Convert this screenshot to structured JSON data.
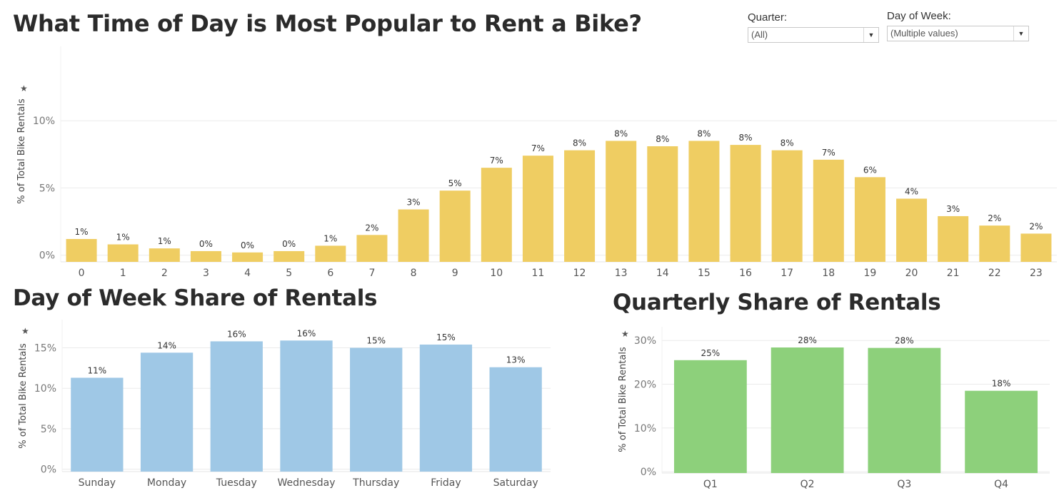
{
  "titles": {
    "main": "What Time of Day is Most Popular to Rent a Bike?",
    "day_of_week": "Day of Week Share of Rentals",
    "quarterly": "Quarterly Share of Rentals"
  },
  "filters": {
    "quarter": {
      "label": "Quarter:",
      "value": "(All)",
      "icon": "chevron-down-icon"
    },
    "day_of_week": {
      "label": "Day of Week:",
      "value": "(Multiple values)",
      "icon": "chevron-down-icon"
    }
  },
  "colors": {
    "hour_bars": "#efcd62",
    "dow_bars": "#9fc8e6",
    "quarter_bars": "#8dd07b"
  },
  "chart_data": [
    {
      "id": "hourly",
      "type": "bar",
      "ylabel": "% of Total Bike Rentals",
      "ylim": [
        -0.5,
        15
      ],
      "yticks": [
        {
          "v": 0,
          "label": "0%"
        },
        {
          "v": 5,
          "label": "5%"
        },
        {
          "v": 10,
          "label": "10%"
        }
      ],
      "grid": true,
      "categories": [
        "0",
        "1",
        "2",
        "3",
        "4",
        "5",
        "6",
        "7",
        "8",
        "9",
        "10",
        "11",
        "12",
        "13",
        "14",
        "15",
        "16",
        "17",
        "18",
        "19",
        "20",
        "21",
        "22",
        "23"
      ],
      "values": [
        1.2,
        0.8,
        0.5,
        0.3,
        0.2,
        0.3,
        0.7,
        1.5,
        3.4,
        4.8,
        6.5,
        7.4,
        7.8,
        8.5,
        8.1,
        8.5,
        8.2,
        7.8,
        7.1,
        5.8,
        4.2,
        2.9,
        2.2,
        1.6
      ],
      "labels": [
        "1%",
        "1%",
        "1%",
        "0%",
        "0%",
        "0%",
        "1%",
        "2%",
        "3%",
        "5%",
        "7%",
        "7%",
        "8%",
        "8%",
        "8%",
        "8%",
        "8%",
        "8%",
        "7%",
        "6%",
        "4%",
        "3%",
        "2%",
        "2%"
      ]
    },
    {
      "id": "day_of_week",
      "type": "bar",
      "ylabel": "% of Total Bike Rentals",
      "ylim": [
        -0.3,
        17.6
      ],
      "yticks": [
        {
          "v": 0,
          "label": "0%"
        },
        {
          "v": 5,
          "label": "5%"
        },
        {
          "v": 10,
          "label": "10%"
        },
        {
          "v": 15,
          "label": "15%"
        }
      ],
      "grid": true,
      "categories": [
        "Sunday",
        "Monday",
        "Tuesday",
        "Wednesday",
        "Thursday",
        "Friday",
        "Saturday"
      ],
      "values": [
        11.3,
        14.4,
        15.8,
        15.9,
        15.0,
        15.4,
        12.6
      ],
      "labels": [
        "11%",
        "14%",
        "16%",
        "16%",
        "15%",
        "15%",
        "13%"
      ]
    },
    {
      "id": "quarterly",
      "type": "bar",
      "ylabel": "% of Total Bike Rentals",
      "ylim": [
        -0.3,
        31.5
      ],
      "yticks": [
        {
          "v": 0,
          "label": "0%"
        },
        {
          "v": 10,
          "label": "10%"
        },
        {
          "v": 20,
          "label": "20%"
        },
        {
          "v": 30,
          "label": "30%"
        }
      ],
      "grid": true,
      "categories": [
        "Q1",
        "Q2",
        "Q3",
        "Q4"
      ],
      "values": [
        25.5,
        28.4,
        28.3,
        18.5
      ],
      "labels": [
        "25%",
        "28%",
        "28%",
        "18%"
      ]
    }
  ]
}
